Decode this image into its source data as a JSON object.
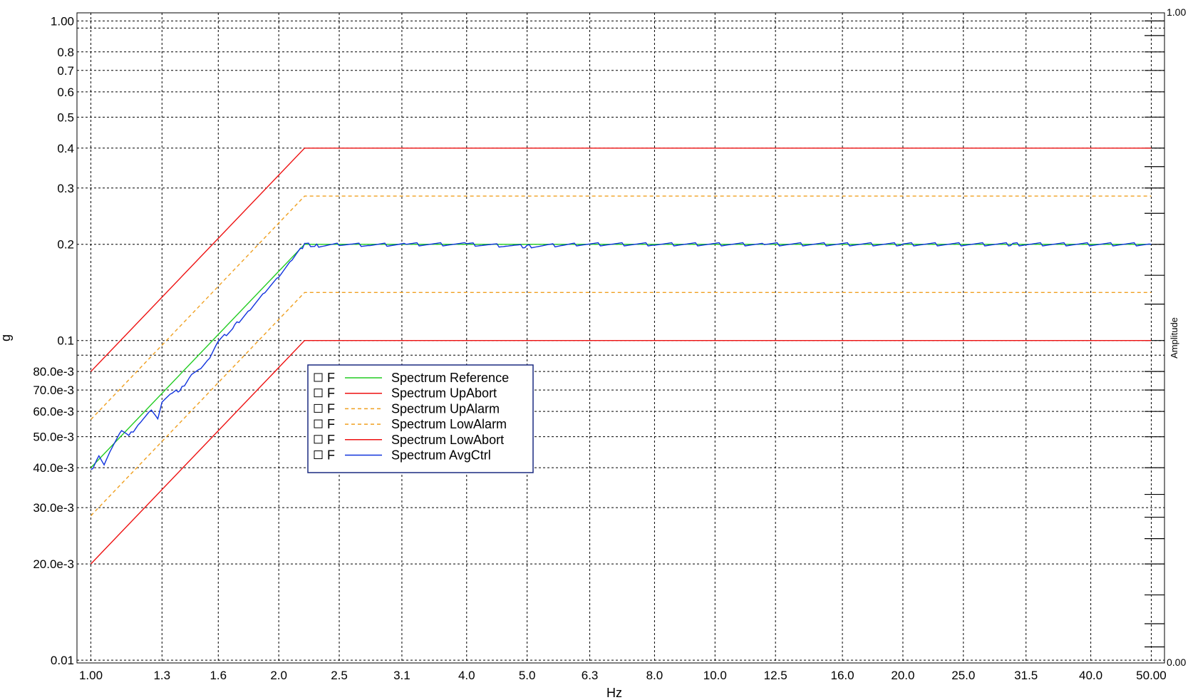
{
  "chart_data": {
    "type": "line",
    "xlabel": "Hz",
    "ylabel": "g",
    "right_axis_label": "Amplitude",
    "right_axis_ticks": [
      "1.00",
      "0.00"
    ],
    "x_scale": "log",
    "y_scale": "log",
    "xlim": [
      0.95,
      52.5
    ],
    "ylim": [
      0.0098,
      1.06
    ],
    "grid": true,
    "legend_position": "center-left",
    "x_ticks": [
      {
        "v": 1.0,
        "label": "1.00"
      },
      {
        "v": 1.3,
        "label": "1.3"
      },
      {
        "v": 1.6,
        "label": "1.6"
      },
      {
        "v": 2.0,
        "label": "2.0"
      },
      {
        "v": 2.5,
        "label": "2.5"
      },
      {
        "v": 3.15,
        "label": "3.1"
      },
      {
        "v": 4.0,
        "label": "4.0"
      },
      {
        "v": 5.0,
        "label": "5.0"
      },
      {
        "v": 6.3,
        "label": "6.3"
      },
      {
        "v": 8.0,
        "label": "8.0"
      },
      {
        "v": 10.0,
        "label": "10.0"
      },
      {
        "v": 12.5,
        "label": "12.5"
      },
      {
        "v": 16.0,
        "label": "16.0"
      },
      {
        "v": 20.0,
        "label": "20.0"
      },
      {
        "v": 25.0,
        "label": "25.0"
      },
      {
        "v": 31.5,
        "label": "31.5"
      },
      {
        "v": 40.0,
        "label": "40.0"
      },
      {
        "v": 50.0,
        "label": "50.00"
      }
    ],
    "y_ticks": [
      {
        "v": 1.0,
        "label": "1.00"
      },
      {
        "v": 0.8,
        "label": "0.8"
      },
      {
        "v": 0.7,
        "label": "0.7"
      },
      {
        "v": 0.6,
        "label": "0.6"
      },
      {
        "v": 0.5,
        "label": "0.5"
      },
      {
        "v": 0.4,
        "label": "0.4"
      },
      {
        "v": 0.3,
        "label": "0.3"
      },
      {
        "v": 0.2,
        "label": "0.2"
      },
      {
        "v": 0.1,
        "label": "0.1"
      },
      {
        "v": 0.08,
        "label": "80.0e-3"
      },
      {
        "v": 0.07,
        "label": "70.0e-3"
      },
      {
        "v": 0.06,
        "label": "60.0e-3"
      },
      {
        "v": 0.05,
        "label": "50.0e-3"
      },
      {
        "v": 0.04,
        "label": "40.0e-3"
      },
      {
        "v": 0.03,
        "label": "30.0e-3"
      },
      {
        "v": 0.02,
        "label": "20.0e-3"
      },
      {
        "v": 0.01,
        "label": "0.01"
      }
    ],
    "y_grid_extra": [
      0.95,
      0.09
    ],
    "series": [
      {
        "name": "Spectrum Reference",
        "color": "#22cc22",
        "dash": "solid",
        "x": [
          1.0,
          2.2,
          50.0
        ],
        "y": [
          0.04,
          0.2,
          0.2
        ]
      },
      {
        "name": "Spectrum UpAbort",
        "color": "#ee1111",
        "dash": "solid",
        "x": [
          1.0,
          2.2,
          50.0
        ],
        "y": [
          0.08,
          0.4,
          0.4
        ]
      },
      {
        "name": "Spectrum UpAlarm",
        "color": "#f0a020",
        "dash": "dashed",
        "x": [
          1.0,
          2.2,
          50.0
        ],
        "y": [
          0.0566,
          0.283,
          0.283
        ]
      },
      {
        "name": "Spectrum LowAlarm",
        "color": "#f0a020",
        "dash": "dashed",
        "x": [
          1.0,
          2.2,
          50.0
        ],
        "y": [
          0.0283,
          0.1414,
          0.1414
        ]
      },
      {
        "name": "Spectrum LowAbort",
        "color": "#ee1111",
        "dash": "solid",
        "x": [
          1.0,
          2.2,
          50.0
        ],
        "y": [
          0.02,
          0.1,
          0.1
        ]
      },
      {
        "name": "Spectrum AvgCtrl",
        "color": "#1133dd",
        "dash": "solid",
        "x": [
          1.0,
          1.03,
          1.05,
          1.08,
          1.12,
          1.15,
          1.2,
          1.25,
          1.28,
          1.3,
          1.35,
          1.4,
          1.45,
          1.5,
          1.55,
          1.6,
          1.7,
          1.8,
          1.9,
          2.0,
          2.1,
          2.2,
          2.3,
          2.5,
          2.8,
          3.2,
          4.0,
          5.0,
          6.0,
          8.0,
          12.0,
          20.0,
          30.0,
          50.0
        ],
        "y": [
          0.039,
          0.044,
          0.041,
          0.046,
          0.052,
          0.05,
          0.056,
          0.061,
          0.057,
          0.064,
          0.068,
          0.071,
          0.079,
          0.082,
          0.088,
          0.099,
          0.111,
          0.126,
          0.142,
          0.158,
          0.178,
          0.2,
          0.198,
          0.2,
          0.199,
          0.2,
          0.2,
          0.197,
          0.2,
          0.2,
          0.2,
          0.2,
          0.2,
          0.2
        ]
      }
    ],
    "legend": [
      {
        "flag": "F",
        "name": "Spectrum Reference"
      },
      {
        "flag": "F",
        "name": "Spectrum UpAbort"
      },
      {
        "flag": "F",
        "name": "Spectrum UpAlarm"
      },
      {
        "flag": "F",
        "name": "Spectrum LowAlarm"
      },
      {
        "flag": "F",
        "name": "Spectrum LowAbort"
      },
      {
        "flag": "F",
        "name": "Spectrum AvgCtrl"
      }
    ]
  }
}
